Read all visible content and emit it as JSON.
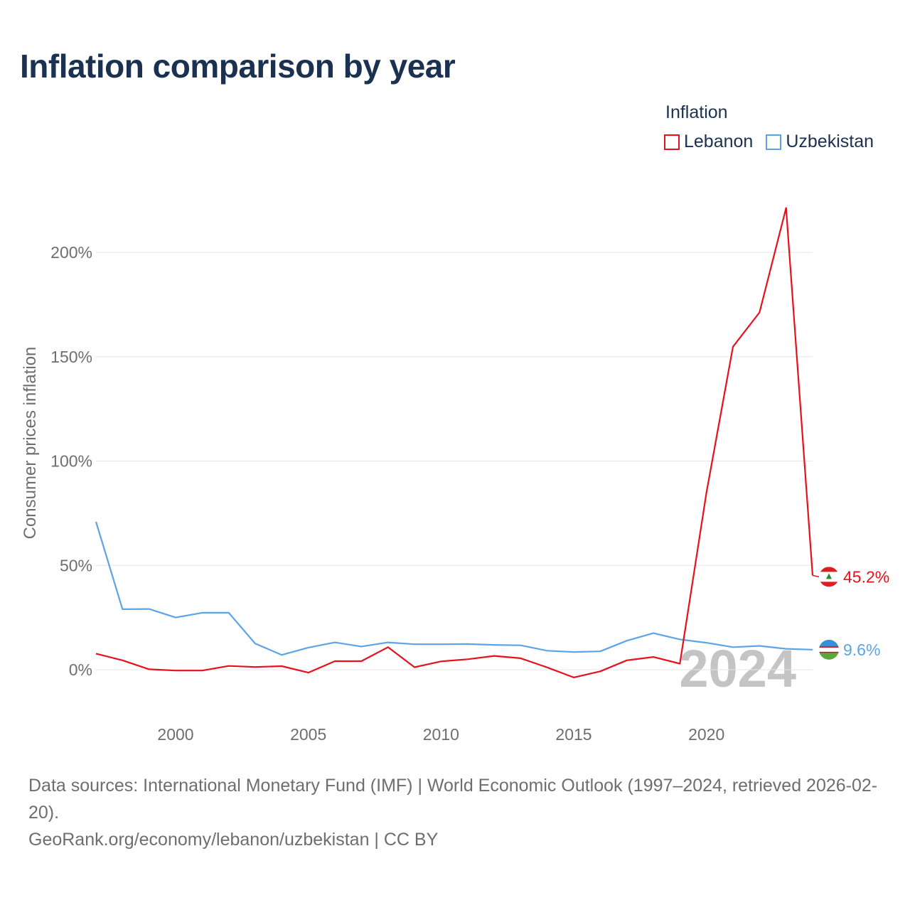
{
  "title": "Inflation comparison by year",
  "legend": {
    "title": "Inflation",
    "items": [
      {
        "label": "Lebanon",
        "color": "#e8111b"
      },
      {
        "label": "Uzbekistan",
        "color": "#5ba4e6"
      }
    ]
  },
  "watermark_year": "2024",
  "footer": {
    "sources": "Data sources: International Monetary Fund (IMF) | World Economic Outlook (1997–2024, retrieved 2026-02-20).",
    "credit": "GeoRank.org/economy/lebanon/uzbekistan | CC BY"
  },
  "chart_data": {
    "type": "line",
    "title": "Inflation comparison by year",
    "xlabel": "",
    "ylabel": "Consumer prices inflation",
    "xlim": [
      1997,
      2024
    ],
    "ylim": [
      -15,
      225
    ],
    "x_ticks": [
      2000,
      2005,
      2010,
      2015,
      2020
    ],
    "y_ticks": [
      0,
      50,
      100,
      150,
      200
    ],
    "y_tick_labels": [
      "0%",
      "50%",
      "100%",
      "150%",
      "200%"
    ],
    "grid": true,
    "legend_position": "top-right",
    "x": [
      1997,
      1998,
      1999,
      2000,
      2001,
      2002,
      2003,
      2004,
      2005,
      2006,
      2007,
      2008,
      2009,
      2010,
      2011,
      2012,
      2013,
      2014,
      2015,
      2016,
      2017,
      2018,
      2019,
      2020,
      2021,
      2022,
      2023,
      2024
    ],
    "series": [
      {
        "name": "Lebanon",
        "color": "#e8111b",
        "end_label": "45.2%",
        "values": [
          7.7,
          4.5,
          0.2,
          -0.4,
          -0.4,
          1.8,
          1.3,
          1.7,
          -1.4,
          4.1,
          4.1,
          10.8,
          1.2,
          4.0,
          5.0,
          6.6,
          5.5,
          1.1,
          -3.7,
          -0.8,
          4.5,
          6.1,
          2.9,
          84.9,
          154.8,
          171.2,
          221.3,
          45.2
        ]
      },
      {
        "name": "Uzbekistan",
        "color": "#5ba4e6",
        "end_label": "9.6%",
        "values": [
          70.9,
          29.0,
          29.1,
          25.0,
          27.3,
          27.3,
          12.5,
          7.1,
          10.6,
          13.1,
          11.1,
          13.1,
          12.2,
          12.2,
          12.3,
          11.9,
          11.7,
          9.1,
          8.5,
          8.8,
          13.9,
          17.5,
          14.5,
          12.9,
          10.8,
          11.4,
          10.0,
          9.6
        ]
      }
    ]
  }
}
